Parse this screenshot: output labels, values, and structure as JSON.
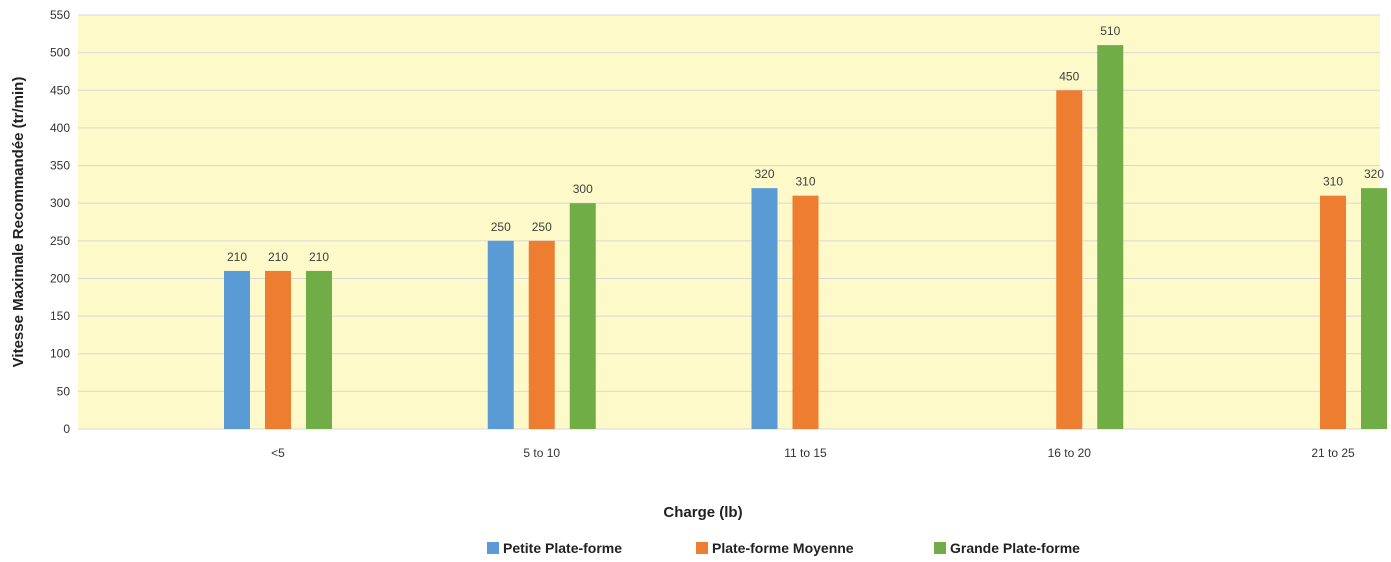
{
  "chart_data": {
    "type": "bar",
    "categories": [
      "<5",
      "5 to 10",
      "11 to 15",
      "16 to 20",
      "21 to 25"
    ],
    "series": [
      {
        "name": "Petite Plate-forme",
        "color": "#5b9bd5",
        "values": [
          210,
          250,
          320,
          null,
          null
        ]
      },
      {
        "name": "Plate-forme Moyenne",
        "color": "#ed7d31",
        "values": [
          210,
          250,
          310,
          450,
          310
        ]
      },
      {
        "name": "Grande Plate-forme",
        "color": "#70ad47",
        "values": [
          210,
          300,
          null,
          510,
          320
        ]
      }
    ],
    "xlabel": "Charge (lb)",
    "ylabel": "Vitesse Maximale Recommandée (tr/min)",
    "ylim": [
      0,
      550
    ],
    "yticks": [
      0,
      50,
      100,
      150,
      200,
      250,
      300,
      350,
      400,
      450,
      500,
      550
    ],
    "grid": true,
    "legend_position": "bottom",
    "plot_background": "#fdf9c9",
    "gridline_color": "#d9d9d9"
  }
}
